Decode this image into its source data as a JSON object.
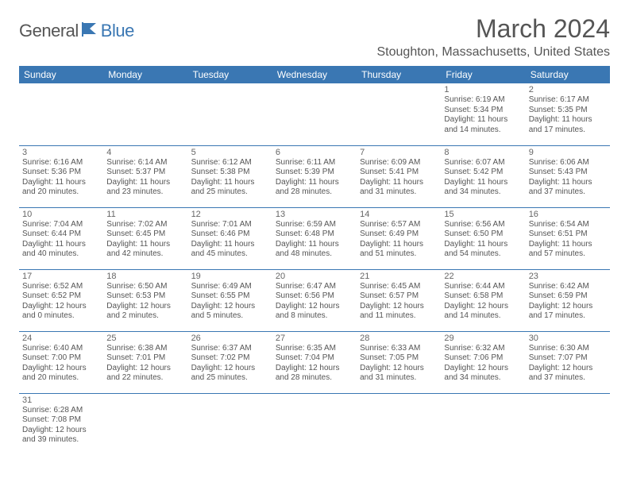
{
  "logo": {
    "part1": "General",
    "part2": "Blue"
  },
  "title": "March 2024",
  "location": "Stoughton, Massachusetts, United States",
  "colors": {
    "header_bg": "#3a77b3",
    "text": "#555555",
    "border": "#3a77b3"
  },
  "daynames": [
    "Sunday",
    "Monday",
    "Tuesday",
    "Wednesday",
    "Thursday",
    "Friday",
    "Saturday"
  ],
  "weeks": [
    [
      null,
      null,
      null,
      null,
      null,
      {
        "n": "1",
        "sr": "Sunrise: 6:19 AM",
        "ss": "Sunset: 5:34 PM",
        "dl": "Daylight: 11 hours and 14 minutes."
      },
      {
        "n": "2",
        "sr": "Sunrise: 6:17 AM",
        "ss": "Sunset: 5:35 PM",
        "dl": "Daylight: 11 hours and 17 minutes."
      }
    ],
    [
      {
        "n": "3",
        "sr": "Sunrise: 6:16 AM",
        "ss": "Sunset: 5:36 PM",
        "dl": "Daylight: 11 hours and 20 minutes."
      },
      {
        "n": "4",
        "sr": "Sunrise: 6:14 AM",
        "ss": "Sunset: 5:37 PM",
        "dl": "Daylight: 11 hours and 23 minutes."
      },
      {
        "n": "5",
        "sr": "Sunrise: 6:12 AM",
        "ss": "Sunset: 5:38 PM",
        "dl": "Daylight: 11 hours and 25 minutes."
      },
      {
        "n": "6",
        "sr": "Sunrise: 6:11 AM",
        "ss": "Sunset: 5:39 PM",
        "dl": "Daylight: 11 hours and 28 minutes."
      },
      {
        "n": "7",
        "sr": "Sunrise: 6:09 AM",
        "ss": "Sunset: 5:41 PM",
        "dl": "Daylight: 11 hours and 31 minutes."
      },
      {
        "n": "8",
        "sr": "Sunrise: 6:07 AM",
        "ss": "Sunset: 5:42 PM",
        "dl": "Daylight: 11 hours and 34 minutes."
      },
      {
        "n": "9",
        "sr": "Sunrise: 6:06 AM",
        "ss": "Sunset: 5:43 PM",
        "dl": "Daylight: 11 hours and 37 minutes."
      }
    ],
    [
      {
        "n": "10",
        "sr": "Sunrise: 7:04 AM",
        "ss": "Sunset: 6:44 PM",
        "dl": "Daylight: 11 hours and 40 minutes."
      },
      {
        "n": "11",
        "sr": "Sunrise: 7:02 AM",
        "ss": "Sunset: 6:45 PM",
        "dl": "Daylight: 11 hours and 42 minutes."
      },
      {
        "n": "12",
        "sr": "Sunrise: 7:01 AM",
        "ss": "Sunset: 6:46 PM",
        "dl": "Daylight: 11 hours and 45 minutes."
      },
      {
        "n": "13",
        "sr": "Sunrise: 6:59 AM",
        "ss": "Sunset: 6:48 PM",
        "dl": "Daylight: 11 hours and 48 minutes."
      },
      {
        "n": "14",
        "sr": "Sunrise: 6:57 AM",
        "ss": "Sunset: 6:49 PM",
        "dl": "Daylight: 11 hours and 51 minutes."
      },
      {
        "n": "15",
        "sr": "Sunrise: 6:56 AM",
        "ss": "Sunset: 6:50 PM",
        "dl": "Daylight: 11 hours and 54 minutes."
      },
      {
        "n": "16",
        "sr": "Sunrise: 6:54 AM",
        "ss": "Sunset: 6:51 PM",
        "dl": "Daylight: 11 hours and 57 minutes."
      }
    ],
    [
      {
        "n": "17",
        "sr": "Sunrise: 6:52 AM",
        "ss": "Sunset: 6:52 PM",
        "dl": "Daylight: 12 hours and 0 minutes."
      },
      {
        "n": "18",
        "sr": "Sunrise: 6:50 AM",
        "ss": "Sunset: 6:53 PM",
        "dl": "Daylight: 12 hours and 2 minutes."
      },
      {
        "n": "19",
        "sr": "Sunrise: 6:49 AM",
        "ss": "Sunset: 6:55 PM",
        "dl": "Daylight: 12 hours and 5 minutes."
      },
      {
        "n": "20",
        "sr": "Sunrise: 6:47 AM",
        "ss": "Sunset: 6:56 PM",
        "dl": "Daylight: 12 hours and 8 minutes."
      },
      {
        "n": "21",
        "sr": "Sunrise: 6:45 AM",
        "ss": "Sunset: 6:57 PM",
        "dl": "Daylight: 12 hours and 11 minutes."
      },
      {
        "n": "22",
        "sr": "Sunrise: 6:44 AM",
        "ss": "Sunset: 6:58 PM",
        "dl": "Daylight: 12 hours and 14 minutes."
      },
      {
        "n": "23",
        "sr": "Sunrise: 6:42 AM",
        "ss": "Sunset: 6:59 PM",
        "dl": "Daylight: 12 hours and 17 minutes."
      }
    ],
    [
      {
        "n": "24",
        "sr": "Sunrise: 6:40 AM",
        "ss": "Sunset: 7:00 PM",
        "dl": "Daylight: 12 hours and 20 minutes."
      },
      {
        "n": "25",
        "sr": "Sunrise: 6:38 AM",
        "ss": "Sunset: 7:01 PM",
        "dl": "Daylight: 12 hours and 22 minutes."
      },
      {
        "n": "26",
        "sr": "Sunrise: 6:37 AM",
        "ss": "Sunset: 7:02 PM",
        "dl": "Daylight: 12 hours and 25 minutes."
      },
      {
        "n": "27",
        "sr": "Sunrise: 6:35 AM",
        "ss": "Sunset: 7:04 PM",
        "dl": "Daylight: 12 hours and 28 minutes."
      },
      {
        "n": "28",
        "sr": "Sunrise: 6:33 AM",
        "ss": "Sunset: 7:05 PM",
        "dl": "Daylight: 12 hours and 31 minutes."
      },
      {
        "n": "29",
        "sr": "Sunrise: 6:32 AM",
        "ss": "Sunset: 7:06 PM",
        "dl": "Daylight: 12 hours and 34 minutes."
      },
      {
        "n": "30",
        "sr": "Sunrise: 6:30 AM",
        "ss": "Sunset: 7:07 PM",
        "dl": "Daylight: 12 hours and 37 minutes."
      }
    ],
    [
      {
        "n": "31",
        "sr": "Sunrise: 6:28 AM",
        "ss": "Sunset: 7:08 PM",
        "dl": "Daylight: 12 hours and 39 minutes."
      },
      null,
      null,
      null,
      null,
      null,
      null
    ]
  ]
}
